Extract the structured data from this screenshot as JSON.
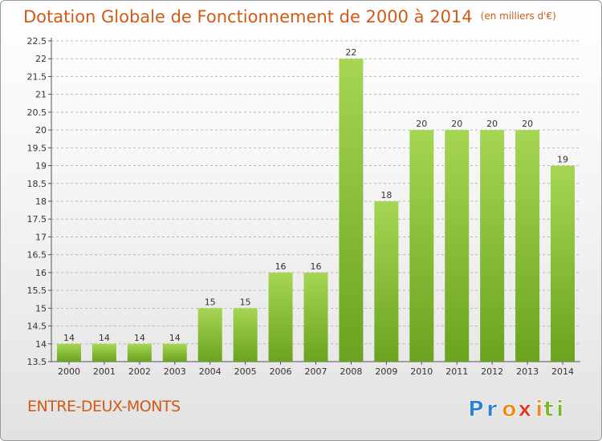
{
  "title": "Dotation Globale de Fonctionnement de 2000 à 2014",
  "unit": "(en milliers d'€)",
  "commune": "ENTRE-DEUX-MONTS",
  "logo": {
    "letters": [
      "P",
      "r",
      "o",
      "x",
      "i",
      "t",
      "i"
    ],
    "text": "Proxiti"
  },
  "colors": {
    "title": "#d05a16",
    "bar_light": "#a6d653",
    "bar_dark": "#6aa31f",
    "logo": [
      "#2f7fd3",
      "#2f7fd3",
      "#f08a1e",
      "#e2392b",
      "#f08a1e",
      "#7cb82f",
      "#7cb82f"
    ]
  },
  "chart_data": {
    "type": "bar",
    "categories": [
      "2000",
      "2001",
      "2002",
      "2003",
      "2004",
      "2005",
      "2006",
      "2007",
      "2008",
      "2009",
      "2010",
      "2011",
      "2012",
      "2013",
      "2014"
    ],
    "values": [
      14,
      14,
      14,
      14,
      15,
      15,
      16,
      16,
      22,
      18,
      20,
      20,
      20,
      20,
      19
    ],
    "ylim": [
      13.5,
      22.5
    ],
    "yticks": [
      "13.5",
      "14",
      "14.5",
      "15",
      "15.5",
      "16",
      "16.5",
      "17",
      "17.5",
      "18",
      "18.5",
      "19",
      "19.5",
      "20",
      "20.5",
      "21",
      "21.5",
      "22",
      "22.5"
    ],
    "grid": true
  }
}
